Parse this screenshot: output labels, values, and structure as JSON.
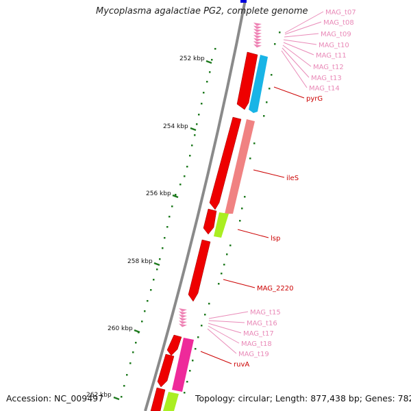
{
  "title": "Mycoplasma agalactiae PG2, complete genome",
  "footer": {
    "accession": "Accession: NC_009497",
    "summary": "Topology: circular; Length: 877,438 bp; Genes: 782"
  },
  "scale_ticks": [
    "252 kbp",
    "254 kbp",
    "256 kbp",
    "258 kbp",
    "260 kbp",
    "262 kbp"
  ],
  "gene_labels": [
    {
      "text": "MAG_t07",
      "kind": "trna"
    },
    {
      "text": "MAG_t08",
      "kind": "trna"
    },
    {
      "text": "MAG_t09",
      "kind": "trna"
    },
    {
      "text": "MAG_t10",
      "kind": "trna"
    },
    {
      "text": "MAG_t11",
      "kind": "trna"
    },
    {
      "text": "MAG_t12",
      "kind": "trna"
    },
    {
      "text": "MAG_t13",
      "kind": "trna"
    },
    {
      "text": "MAG_t14",
      "kind": "trna"
    },
    {
      "text": "pyrG",
      "kind": "cds"
    },
    {
      "text": "ileS",
      "kind": "cds"
    },
    {
      "text": "lsp",
      "kind": "cds"
    },
    {
      "text": "MAG_2220",
      "kind": "cds"
    },
    {
      "text": "MAG_t15",
      "kind": "trna"
    },
    {
      "text": "MAG_t16",
      "kind": "trna"
    },
    {
      "text": "MAG_t17",
      "kind": "trna"
    },
    {
      "text": "MAG_t18",
      "kind": "trna"
    },
    {
      "text": "MAG_t19",
      "kind": "trna"
    },
    {
      "text": "ruvA",
      "kind": "cds"
    }
  ],
  "colors": {
    "backbone": "#8a8a8a",
    "cds": "#ee0000",
    "trna": "#ee82b4",
    "label_cds": "#cc0000",
    "label_trna": "#e98ab8",
    "cog_blue": "#19b4e6",
    "cog_salmon": "#f08282",
    "cog_green": "#aaee22",
    "cog_magenta": "#ee2a9a",
    "gc_marks": "#1e7a1e",
    "rrna": "#0000dd"
  }
}
